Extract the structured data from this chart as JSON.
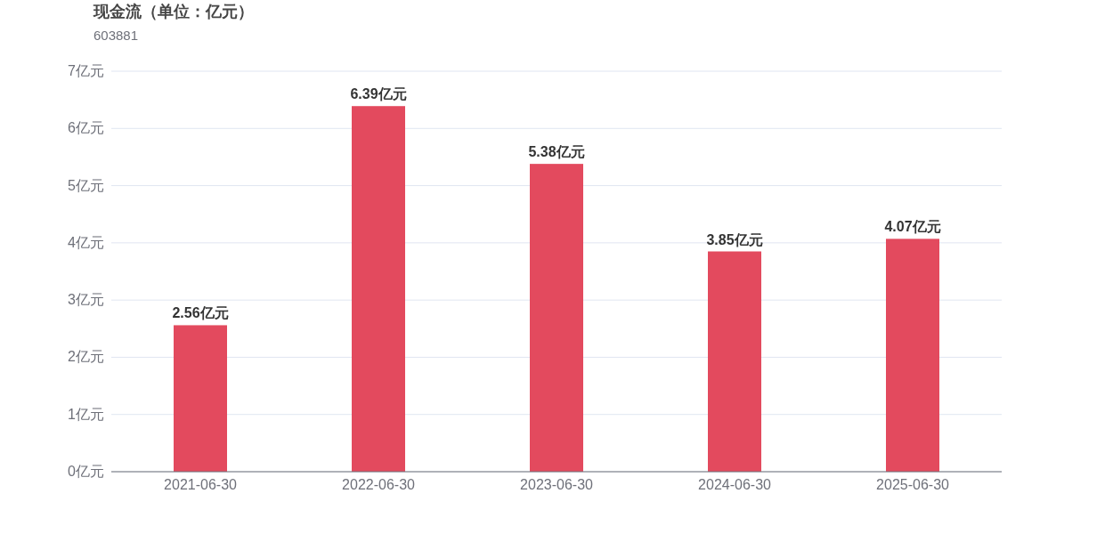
{
  "chart_data": {
    "type": "bar",
    "title": "现金流（单位：亿元）",
    "subtitle": "603881",
    "categories": [
      "2021-06-30",
      "2022-06-30",
      "2023-06-30",
      "2024-06-30",
      "2025-06-30"
    ],
    "values": [
      2.56,
      6.39,
      5.38,
      3.85,
      4.07
    ],
    "color": "#e34a5e",
    "value_labels": [
      "2.56亿元",
      "6.39亿元",
      "5.38亿元",
      "3.85亿元",
      "4.07亿元"
    ],
    "ylim": [
      0,
      7
    ],
    "yticks": [
      {
        "value": 0,
        "label": "0亿元"
      },
      {
        "value": 1,
        "label": "1亿元"
      },
      {
        "value": 2,
        "label": "2亿元"
      },
      {
        "value": 3,
        "label": "3亿元"
      },
      {
        "value": 4,
        "label": "4亿元"
      },
      {
        "value": 5,
        "label": "5亿元"
      },
      {
        "value": 6,
        "label": "6亿元"
      },
      {
        "value": 7,
        "label": "7亿元"
      }
    ],
    "grid": "y"
  }
}
